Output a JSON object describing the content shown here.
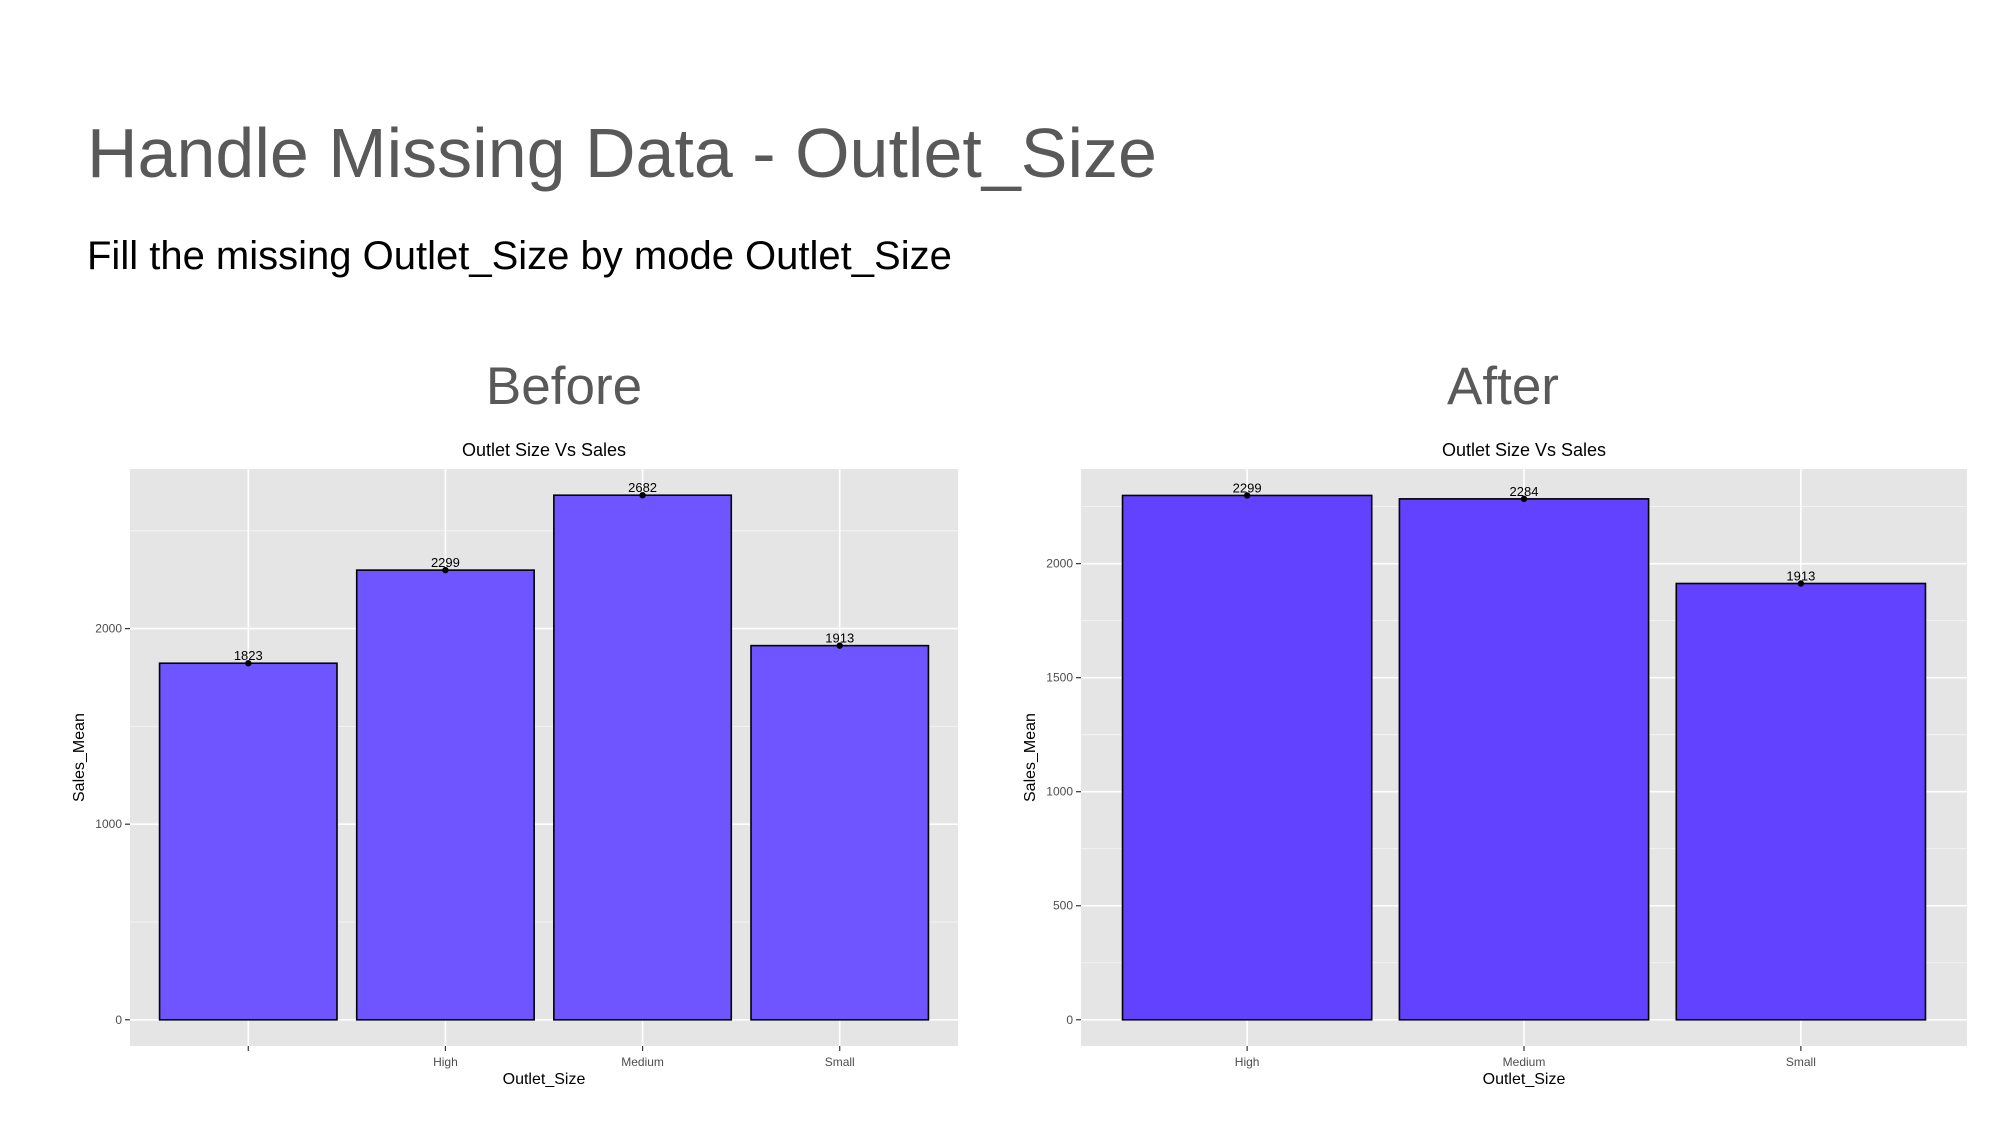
{
  "slide": {
    "title": "Handle Missing Data - Outlet_Size",
    "subtitle": "Fill the missing Outlet_Size by mode Outlet_Size"
  },
  "panels": {
    "before_heading": "Before",
    "after_heading": "After"
  },
  "colors": {
    "before_bar": "#6e55ff",
    "after_bar": "#6342ff",
    "panel_background": "#e5e5e5",
    "grid": "#ffffff"
  },
  "chart_data": [
    {
      "type": "bar",
      "title": "Outlet Size Vs Sales",
      "xlabel": "Outlet_Size",
      "ylabel": "Sales_Mean",
      "categories": [
        "",
        "High",
        "Medium",
        "Small"
      ],
      "values": [
        1823,
        2299,
        2682,
        1913
      ],
      "data_labels": [
        "1823",
        "2299",
        "2682",
        "1913"
      ],
      "yticks": [
        0,
        1000,
        2000
      ],
      "ylim": [
        -134,
        2816
      ],
      "grid": true
    },
    {
      "type": "bar",
      "title": "Outlet Size Vs Sales",
      "xlabel": "Outlet_Size",
      "ylabel": "Sales_Mean",
      "categories": [
        "High",
        "Medium",
        "Small"
      ],
      "values": [
        2299,
        2284,
        1913
      ],
      "data_labels": [
        "2299",
        "2284",
        "1913"
      ],
      "yticks": [
        0,
        500,
        1000,
        1500,
        2000
      ],
      "ylim": [
        -115,
        2415
      ],
      "grid": true
    }
  ]
}
